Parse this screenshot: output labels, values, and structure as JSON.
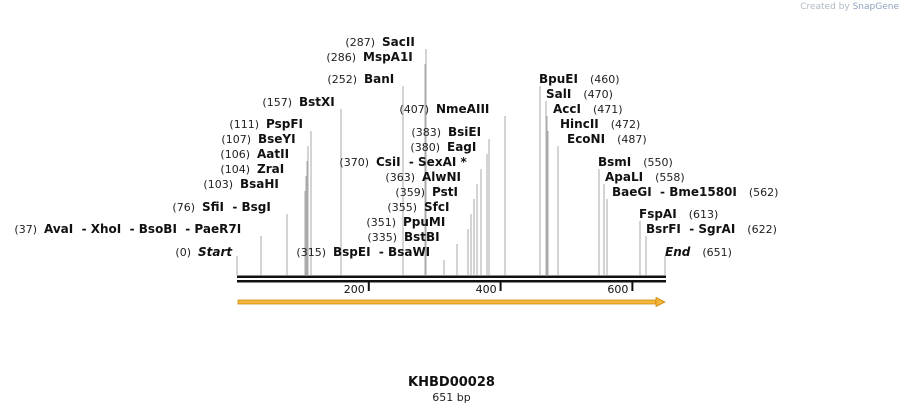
{
  "credit": {
    "prefix": "Created by",
    "brand": "SnapGene"
  },
  "map": {
    "name": "KHBD00028",
    "length_label": "651 bp"
  },
  "colors": {
    "line": "#111111",
    "leader": "#aaaaaa",
    "feature_fill": "#f5b73b",
    "feature_stroke": "#c47f00"
  },
  "ticks": [
    "200",
    "400",
    "600"
  ],
  "feature": {
    "name": "",
    "direction": "forward"
  },
  "sites": [
    {
      "pos": "(0)",
      "name": "Start",
      "italic": true
    },
    {
      "pos": "(37)",
      "name": "AvaI  - XhoI  - BsoBI  - PaeR7I"
    },
    {
      "pos": "(76)",
      "name": "SfiI  - BsgI"
    },
    {
      "pos": "(103)",
      "name": "BsaHI"
    },
    {
      "pos": "(104)",
      "name": "ZraI"
    },
    {
      "pos": "(106)",
      "name": "AatII"
    },
    {
      "pos": "(107)",
      "name": "BseYI"
    },
    {
      "pos": "(111)",
      "name": "PspFI"
    },
    {
      "pos": "(157)",
      "name": "BstXI"
    },
    {
      "pos": "(252)",
      "name": "BanI"
    },
    {
      "pos": "(286)",
      "name": "MspA1I"
    },
    {
      "pos": "(287)",
      "name": "SacII"
    },
    {
      "pos": "(315)",
      "name": "BspEI  - BsaWI",
      "pos_left": true
    },
    {
      "pos": "(335)",
      "name": "BstBI"
    },
    {
      "pos": "(351)",
      "name": "PpuMI"
    },
    {
      "pos": "(355)",
      "name": "SfcI"
    },
    {
      "pos": "(359)",
      "name": "PstI"
    },
    {
      "pos": "(363)",
      "name": "AlwNI"
    },
    {
      "pos": "(370)",
      "name": "CsiI  - SexAI *"
    },
    {
      "pos": "(380)",
      "name": "EagI"
    },
    {
      "pos": "(383)",
      "name": "BsiEI"
    },
    {
      "pos": "(407)",
      "name": "NmeAIII"
    },
    {
      "pos": "(460)",
      "name": "BpuEI",
      "pos_right": true
    },
    {
      "pos": "(470)",
      "name": "SalI",
      "pos_right": true
    },
    {
      "pos": "(471)",
      "name": "AccI",
      "pos_right": true
    },
    {
      "pos": "(472)",
      "name": "HincII",
      "pos_right": true
    },
    {
      "pos": "(487)",
      "name": "EcoNI",
      "pos_right": true
    },
    {
      "pos": "(550)",
      "name": "BsmI",
      "pos_right": true
    },
    {
      "pos": "(558)",
      "name": "ApaLI",
      "pos_right": true
    },
    {
      "pos": "(562)",
      "name": "BaeGI  - Bme1580I",
      "pos_right": true
    },
    {
      "pos": "(613)",
      "name": "FspAI",
      "pos_right": true
    },
    {
      "pos": "(622)",
      "name": "BsrFI  - SgrAI",
      "pos_right": true
    },
    {
      "pos": "(651)",
      "name": "End",
      "italic": true,
      "pos_right": true
    }
  ]
}
